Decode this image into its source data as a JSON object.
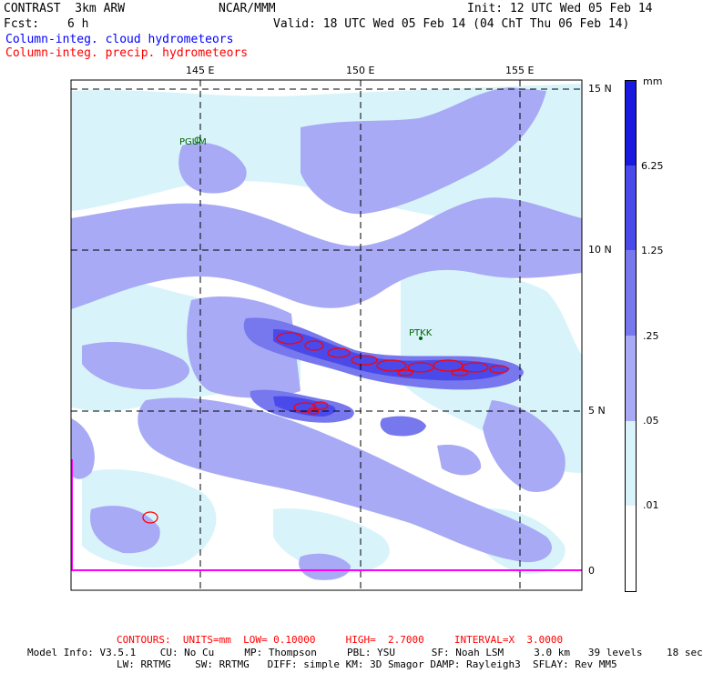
{
  "header": {
    "model_title": "CONTRAST  3km ARW",
    "center": "NCAR/MMM",
    "init": "Init: 12 UTC Wed 05 Feb 14",
    "fcst_label": "Fcst:",
    "fcst_value": "6 h",
    "valid": "Valid: 18 UTC Wed 05 Feb 14 (04 ChT Thu 06 Feb 14)",
    "field1": "Column-integ. cloud hydrometeors",
    "field2": "Column-integ. precip. hydrometeors"
  },
  "map": {
    "lon_ticks": [
      "145 E",
      "150 E",
      "155 E"
    ],
    "lat_ticks": [
      "15 N",
      "10 N",
      "5 N",
      "0"
    ],
    "stations": [
      "PGUM",
      "PTKK"
    ]
  },
  "legend": {
    "unit": "mm",
    "labels": [
      "6.25",
      "1.25",
      ".25",
      ".05",
      ".01"
    ],
    "colors": [
      "#1a1adf",
      "#4a4aeb",
      "#7777ee",
      "#a8aaf5",
      "#d8f4fa",
      "#ffffff"
    ],
    "accent_precip": "#ff0000",
    "accent_border": "#ff00ff"
  },
  "footer": {
    "contours": "CONTOURS:  UNITS=mm  LOW= 0.10000     HIGH=  2.7000     INTERVAL=X  3.0000",
    "model_info_1": "Model Info: V3.5.1    CU: No Cu     MP: Thompson     PBL: YSU      SF: Noah LSM     3.0 km   39 levels    18 sec",
    "model_info_2": "LW: RRTMG    SW: RRTMG   DIFF: simple KM: 3D Smagor DAMP: Rayleigh3  SFLAY: Rev MM5"
  }
}
